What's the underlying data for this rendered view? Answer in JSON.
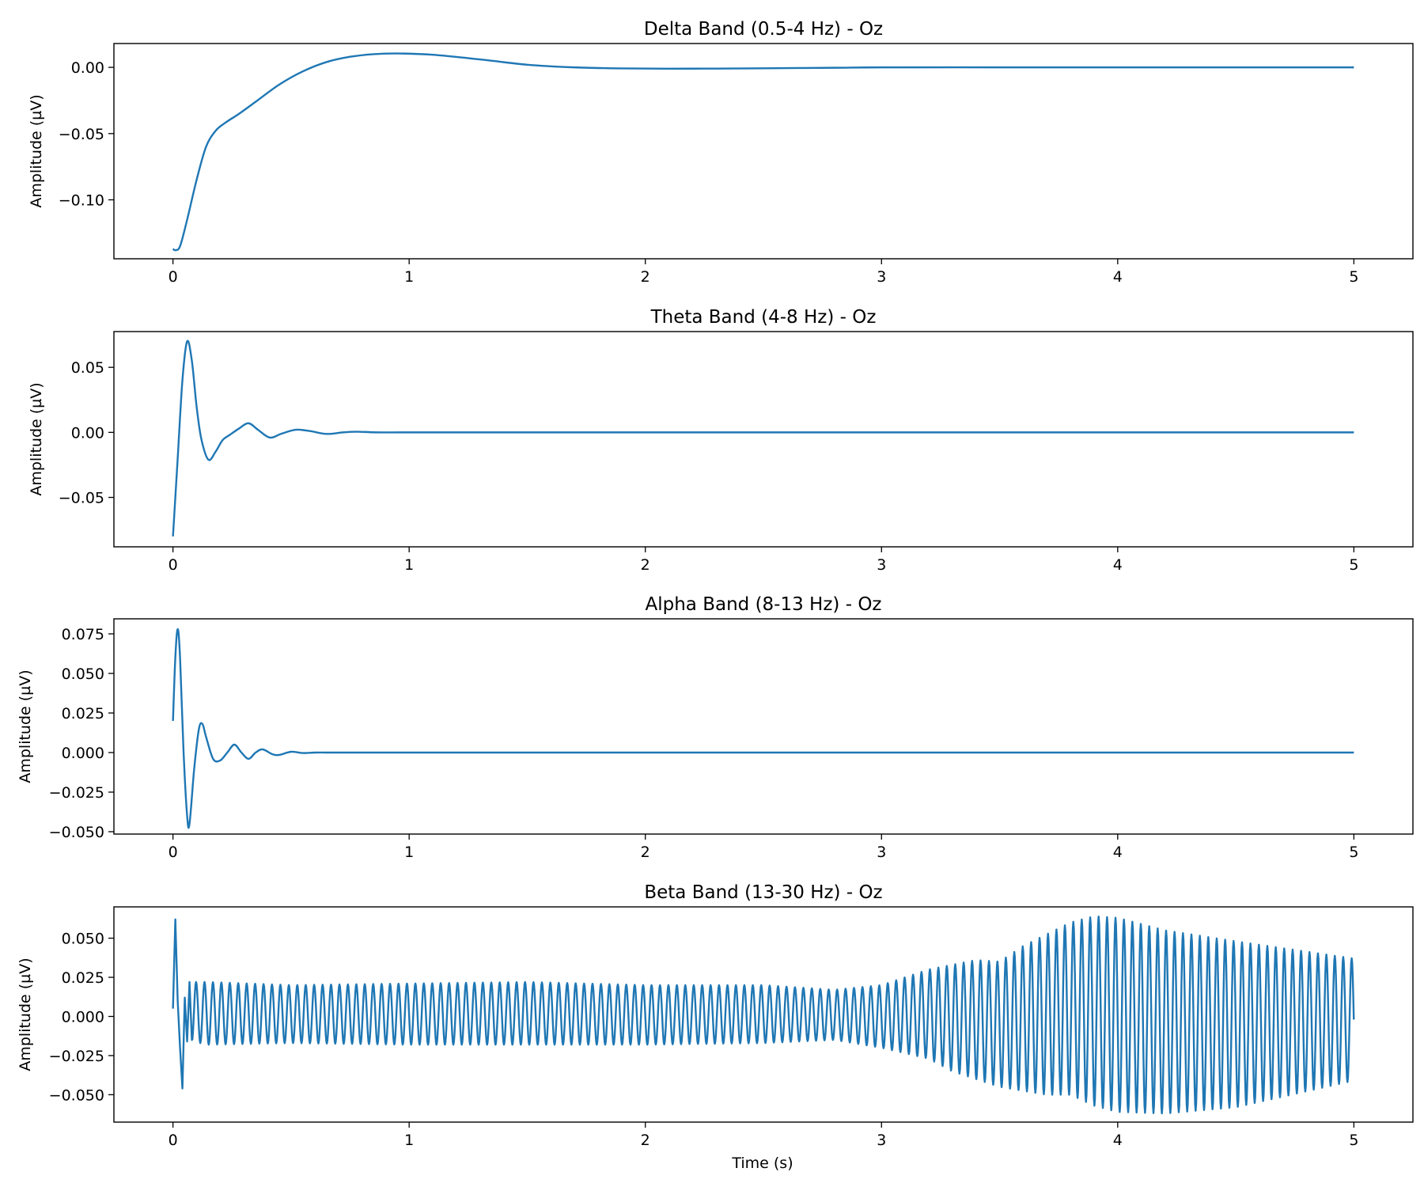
{
  "figure": {
    "xlabel": "Time (s)",
    "line_color": "#1f77b4"
  },
  "chart_data": [
    {
      "type": "line",
      "title": "Delta Band (0.5-4 Hz) - Oz",
      "xlabel": "",
      "ylabel": "Amplitude (µV)",
      "xlim": [
        -0.25,
        5.25
      ],
      "ylim": [
        -0.1445,
        0.018
      ],
      "xticks": [
        0,
        1,
        2,
        3,
        4,
        5
      ],
      "xtick_labels": [
        "0",
        "1",
        "2",
        "3",
        "4",
        "5"
      ],
      "yticks": [
        -0.1,
        -0.05,
        0.0
      ],
      "ytick_labels": [
        "−0.10",
        "−0.05",
        "0.00"
      ],
      "series": [
        {
          "x": [
            0,
            0.01,
            0.03,
            0.06,
            0.1,
            0.14,
            0.18,
            0.22,
            0.28,
            0.35,
            0.45,
            0.55,
            0.65,
            0.75,
            0.85,
            0.95,
            1.1,
            1.3,
            1.5,
            1.7,
            1.9,
            2.1,
            2.3,
            2.5,
            2.8,
            3.0,
            3.5,
            4.0,
            4.5,
            5.0
          ],
          "y": [
            -0.137,
            -0.138,
            -0.135,
            -0.115,
            -0.085,
            -0.06,
            -0.048,
            -0.042,
            -0.035,
            -0.026,
            -0.013,
            -0.003,
            0.004,
            0.008,
            0.01,
            0.0105,
            0.0095,
            0.006,
            0.002,
            0.0,
            -0.0008,
            -0.001,
            -0.0009,
            -0.0007,
            -0.0003,
            0.0,
            0.0,
            0.0,
            0.0,
            0.0
          ]
        }
      ]
    },
    {
      "type": "line",
      "title": "Theta Band (4-8 Hz) - Oz",
      "xlabel": "",
      "ylabel": "Amplitude (µV)",
      "xlim": [
        -0.25,
        5.25
      ],
      "ylim": [
        -0.088,
        0.0775
      ],
      "xticks": [
        0,
        1,
        2,
        3,
        4,
        5
      ],
      "xtick_labels": [
        "0",
        "1",
        "2",
        "3",
        "4",
        "5"
      ],
      "yticks": [
        -0.05,
        0.0,
        0.05
      ],
      "ytick_labels": [
        "−0.05",
        "0.00",
        "0.05"
      ],
      "series": [
        {
          "x": [
            0,
            0.02,
            0.04,
            0.06,
            0.08,
            0.1,
            0.12,
            0.15,
            0.18,
            0.21,
            0.24,
            0.28,
            0.32,
            0.36,
            0.41,
            0.46,
            0.52,
            0.58,
            0.65,
            0.72,
            0.78,
            0.86,
            1.0,
            1.5,
            2.0,
            3.0,
            4.0,
            5.0
          ],
          "y": [
            -0.08,
            -0.02,
            0.04,
            0.07,
            0.055,
            0.02,
            -0.005,
            -0.021,
            -0.015,
            -0.006,
            -0.002,
            0.003,
            0.007,
            0.002,
            -0.004,
            -0.001,
            0.002,
            0.001,
            -0.0012,
            0.0,
            0.0005,
            0.0,
            0.0,
            0.0,
            0.0,
            0.0,
            0.0,
            0.0
          ]
        }
      ]
    },
    {
      "type": "line",
      "title": "Alpha Band (8-13 Hz) - Oz",
      "xlabel": "",
      "ylabel": "Amplitude (µV)",
      "xlim": [
        -0.25,
        5.25
      ],
      "ylim": [
        -0.0515,
        0.0845
      ],
      "xticks": [
        0,
        1,
        2,
        3,
        4,
        5
      ],
      "xtick_labels": [
        "0",
        "1",
        "2",
        "3",
        "4",
        "5"
      ],
      "yticks": [
        -0.05,
        -0.025,
        0.0,
        0.025,
        0.05,
        0.075
      ],
      "ytick_labels": [
        "−0.050",
        "−0.025",
        "0.000",
        "0.025",
        "0.050",
        "0.075"
      ],
      "series": [
        {
          "x": [
            0,
            0.01,
            0.02,
            0.03,
            0.045,
            0.06,
            0.07,
            0.09,
            0.11,
            0.125,
            0.14,
            0.17,
            0.2,
            0.23,
            0.26,
            0.29,
            0.32,
            0.35,
            0.38,
            0.42,
            0.45,
            0.5,
            0.55,
            0.6,
            0.65,
            0.7,
            1.0,
            2.0,
            3.0,
            4.0,
            5.0
          ],
          "y": [
            0.02,
            0.06,
            0.078,
            0.06,
            0.0,
            -0.04,
            -0.045,
            -0.01,
            0.015,
            0.018,
            0.01,
            -0.004,
            -0.005,
            0.0,
            0.005,
            0.0,
            -0.004,
            0.0,
            0.002,
            -0.001,
            -0.0015,
            0.0005,
            -0.0003,
            0.0,
            0.0,
            0.0,
            0.0,
            0.0,
            0.0,
            0.0,
            0.0
          ]
        }
      ]
    },
    {
      "type": "line",
      "title": "Beta Band (13-30 Hz) - Oz",
      "xlabel": "Time (s)",
      "ylabel": "Amplitude (µV)",
      "xlim": [
        -0.25,
        5.25
      ],
      "ylim": [
        -0.0675,
        0.07
      ],
      "xticks": [
        0,
        1,
        2,
        3,
        4,
        5
      ],
      "xtick_labels": [
        "0",
        "1",
        "2",
        "3",
        "4",
        "5"
      ],
      "yticks": [
        -0.05,
        -0.025,
        0.0,
        0.025,
        0.05
      ],
      "ytick_labels": [
        "−0.050",
        "−0.025",
        "0.000",
        "0.025",
        "0.050"
      ],
      "oscillation_hz": 28,
      "transient": {
        "x": [
          0,
          0.01,
          0.02,
          0.03,
          0.04,
          0.05,
          0.06,
          0.07,
          0.08
        ],
        "y": [
          0.005,
          0.062,
          0.01,
          -0.02,
          -0.046,
          0.012,
          -0.016,
          0.022,
          -0.015
        ]
      },
      "envelope_upper": {
        "x": [
          0.08,
          0.15,
          0.5,
          1.0,
          1.5,
          2.0,
          2.5,
          2.8,
          3.0,
          3.2,
          3.4,
          3.5,
          3.6,
          3.8,
          3.9,
          4.0,
          4.2,
          4.5,
          5.0
        ],
        "y": [
          0.022,
          0.022,
          0.02,
          0.021,
          0.022,
          0.02,
          0.02,
          0.017,
          0.02,
          0.03,
          0.036,
          0.035,
          0.045,
          0.06,
          0.064,
          0.063,
          0.055,
          0.048,
          0.037
        ]
      },
      "envelope_lower": {
        "x": [
          0.08,
          0.15,
          0.5,
          1.0,
          1.5,
          2.0,
          2.5,
          2.8,
          3.0,
          3.2,
          3.3,
          3.5,
          3.7,
          3.8,
          3.9,
          4.0,
          4.2,
          4.5,
          5.0
        ],
        "y": [
          -0.016,
          -0.018,
          -0.017,
          -0.018,
          -0.018,
          -0.018,
          -0.017,
          -0.015,
          -0.02,
          -0.027,
          -0.035,
          -0.045,
          -0.05,
          -0.05,
          -0.057,
          -0.061,
          -0.062,
          -0.058,
          -0.041
        ]
      }
    }
  ]
}
